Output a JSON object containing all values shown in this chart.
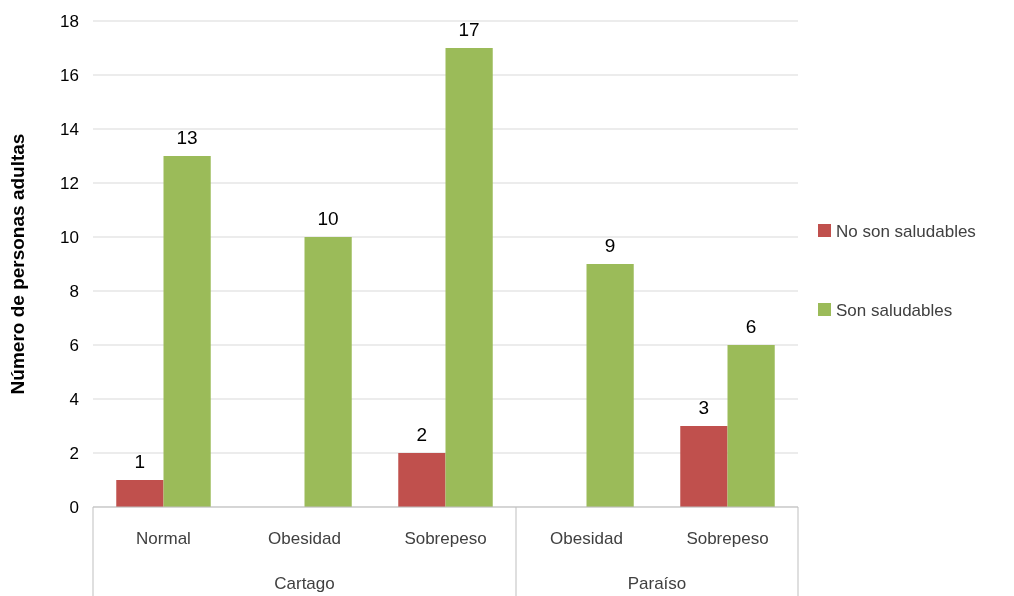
{
  "chart_data": {
    "type": "bar",
    "ylabel": "Número de personas adultas",
    "categories": [
      "Normal",
      "Obesidad",
      "Sobrepeso",
      "Obesidad",
      "Sobrepeso"
    ],
    "series": [
      {
        "name": "No son saludables",
        "color": "#c0504d",
        "values": [
          1,
          null,
          2,
          null,
          3
        ]
      },
      {
        "name": "Son saludables",
        "color": "#9bbb59",
        "values": [
          13,
          10,
          17,
          9,
          6
        ]
      }
    ],
    "ylim": [
      0,
      18
    ],
    "yticks": [
      0,
      2,
      4,
      6,
      8,
      10,
      12,
      14,
      16,
      18
    ],
    "grid": "y",
    "legend": "right",
    "data_labels": true,
    "annotations": [
      "Cartago",
      "Paraíso"
    ]
  }
}
